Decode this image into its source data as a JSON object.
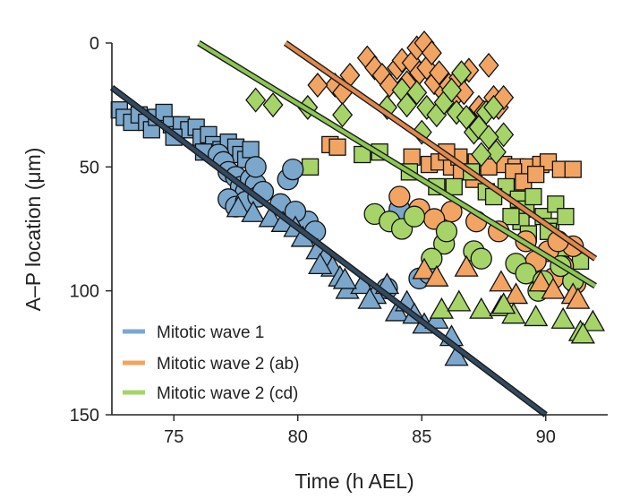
{
  "chart_data": {
    "type": "scatter",
    "xlabel": "Time (h AEL)",
    "ylabel": "A–P location (μm)",
    "xlim": [
      72.5,
      92.5
    ],
    "ylim": [
      0,
      150
    ],
    "y_inverted": true,
    "xticks": [
      75,
      80,
      85,
      90
    ],
    "yticks": [
      0,
      50,
      100,
      150
    ],
    "grid": false,
    "legend_position": "bottom-left",
    "colors": {
      "wave1": "#7ba7cc",
      "wave2ab": "#f2a463",
      "wave2cd": "#a6d468",
      "wave1_line": "#334a60",
      "wave2ab_line": "#e0884c",
      "wave2cd_line": "#8cc653",
      "outline": "#111111"
    },
    "series": [
      {
        "name": "Mitotic wave 1",
        "color_key": "wave1",
        "fit": {
          "x": [
            72.5,
            90.0
          ],
          "y": [
            18,
            150
          ]
        },
        "groups": [
          {
            "marker": "square",
            "points": [
              [
                72.8,
                27
              ],
              [
                73.0,
                30
              ],
              [
                73.3,
                32
              ],
              [
                73.6,
                29
              ],
              [
                73.9,
                32
              ],
              [
                74.1,
                35
              ],
              [
                74.3,
                30
              ],
              [
                74.6,
                28
              ],
              [
                74.9,
                33
              ],
              [
                75.1,
                37
              ],
              [
                75.3,
                33
              ],
              [
                75.6,
                35
              ],
              [
                75.9,
                34
              ],
              [
                76.1,
                38
              ],
              [
                76.4,
                37
              ],
              [
                76.6,
                41
              ],
              [
                76.9,
                43
              ],
              [
                77.2,
                40
              ],
              [
                77.5,
                42
              ],
              [
                77.7,
                45
              ],
              [
                77.9,
                47
              ],
              [
                78.1,
                43
              ],
              [
                75.0,
                38
              ],
              [
                76.2,
                44
              ]
            ]
          },
          {
            "marker": "circle",
            "points": [
              [
                76.8,
                45
              ],
              [
                77.0,
                48
              ],
              [
                77.2,
                52
              ],
              [
                77.5,
                54
              ],
              [
                77.7,
                58
              ],
              [
                77.9,
                60
              ],
              [
                78.1,
                55
              ],
              [
                78.3,
                57
              ],
              [
                77.2,
                63
              ],
              [
                77.5,
                66
              ],
              [
                77.9,
                64
              ],
              [
                78.4,
                62
              ],
              [
                78.6,
                60
              ],
              [
                78.3,
                50
              ],
              [
                79.6,
                55
              ],
              [
                79.8,
                51
              ],
              [
                80.4,
                72
              ],
              [
                80.7,
                76
              ],
              [
                79.3,
                65
              ],
              [
                79.9,
                68
              ],
              [
                84.1,
                67
              ],
              [
                84.9,
                95
              ],
              [
                85.3,
                93
              ],
              [
                83.6,
                99
              ]
            ]
          },
          {
            "marker": "triangle",
            "points": [
              [
                77.6,
                67
              ],
              [
                78.2,
                69
              ],
              [
                78.9,
                71
              ],
              [
                79.4,
                73
              ],
              [
                79.9,
                75
              ],
              [
                80.2,
                79
              ],
              [
                80.8,
                84
              ],
              [
                81.1,
                87
              ],
              [
                81.4,
                91
              ],
              [
                81.7,
                95
              ],
              [
                82.0,
                100
              ],
              [
                82.6,
                98
              ],
              [
                83.1,
                102
              ],
              [
                83.6,
                98
              ],
              [
                84.0,
                109
              ],
              [
                84.4,
                105
              ],
              [
                85.1,
                114
              ],
              [
                85.6,
                112
              ],
              [
                86.2,
                119
              ],
              [
                86.4,
                127
              ],
              [
                80.9,
                90
              ],
              [
                81.9,
                96
              ],
              [
                82.9,
                104
              ],
              [
                84.7,
                110
              ]
            ]
          }
        ]
      },
      {
        "name": "Mitotic wave 2 (ab)",
        "color_key": "wave2ab",
        "fit": {
          "x": [
            79.5,
            92.0
          ],
          "y": [
            0,
            87
          ]
        },
        "groups": [
          {
            "marker": "diamond",
            "points": [
              [
                82.8,
                6
              ],
              [
                83.1,
                10
              ],
              [
                83.4,
                13
              ],
              [
                83.7,
                17
              ],
              [
                84.0,
                10
              ],
              [
                84.2,
                7
              ],
              [
                84.4,
                16
              ],
              [
                84.6,
                8
              ],
              [
                84.8,
                2
              ],
              [
                84.9,
                12
              ],
              [
                85.1,
                0
              ],
              [
                85.2,
                10
              ],
              [
                85.4,
                4
              ],
              [
                85.5,
                16
              ],
              [
                85.7,
                12
              ],
              [
                85.9,
                20
              ],
              [
                86.1,
                17
              ],
              [
                86.3,
                22
              ],
              [
                86.5,
                14
              ],
              [
                86.7,
                20
              ],
              [
                86.9,
                11
              ],
              [
                87.1,
                30
              ],
              [
                87.3,
                26
              ],
              [
                87.5,
                28
              ],
              [
                87.7,
                9
              ],
              [
                87.9,
                22
              ],
              [
                88.1,
                26
              ],
              [
                88.3,
                22
              ],
              [
                81.5,
                17
              ],
              [
                81.8,
                20
              ],
              [
                82.1,
                13
              ],
              [
                80.8,
                17
              ]
            ]
          },
          {
            "marker": "square",
            "points": [
              [
                81.3,
                41
              ],
              [
                81.6,
                42
              ],
              [
                84.6,
                46
              ],
              [
                85.3,
                49
              ],
              [
                85.7,
                48
              ],
              [
                86.2,
                50
              ],
              [
                86.6,
                52
              ],
              [
                87.1,
                55
              ],
              [
                88.3,
                49
              ],
              [
                88.8,
                50
              ],
              [
                89.3,
                50
              ],
              [
                89.8,
                49
              ],
              [
                90.1,
                48
              ],
              [
                90.6,
                51
              ],
              [
                91.1,
                51
              ],
              [
                86.5,
                46
              ],
              [
                87.2,
                48
              ],
              [
                87.7,
                50
              ],
              [
                88.7,
                52
              ],
              [
                89.1,
                56
              ],
              [
                89.6,
                53
              ],
              [
                86.0,
                44
              ]
            ]
          },
          {
            "marker": "circle",
            "points": [
              [
                84.1,
                62
              ],
              [
                84.9,
                67
              ],
              [
                86.2,
                68
              ],
              [
                87.2,
                72
              ],
              [
                88.1,
                76
              ],
              [
                89.2,
                80
              ],
              [
                90.1,
                84
              ],
              [
                91.1,
                82
              ],
              [
                90.5,
                80
              ],
              [
                89.6,
                88
              ],
              [
                90.7,
                90
              ],
              [
                91.2,
                97
              ],
              [
                90.3,
                95
              ],
              [
                85.5,
                71
              ]
            ]
          },
          {
            "marker": "triangle",
            "points": [
              [
                85.1,
                92
              ],
              [
                85.6,
                95
              ],
              [
                86.8,
                91
              ],
              [
                88.2,
                97
              ],
              [
                88.8,
                102
              ],
              [
                89.8,
                97
              ],
              [
                90.3,
                100
              ],
              [
                91.1,
                102
              ],
              [
                91.3,
                104
              ]
            ]
          }
        ]
      },
      {
        "name": "Mitotic wave 2 (cd)",
        "color_key": "wave2cd",
        "fit": {
          "x": [
            76.0,
            92.0
          ],
          "y": [
            0,
            98
          ]
        },
        "groups": [
          {
            "marker": "diamond",
            "points": [
              [
                78.3,
                23
              ],
              [
                79.0,
                25
              ],
              [
                80.4,
                26
              ],
              [
                81.8,
                29
              ],
              [
                83.6,
                26
              ],
              [
                84.2,
                19
              ],
              [
                84.4,
                25
              ],
              [
                84.8,
                20
              ],
              [
                85.2,
                26
              ],
              [
                85.6,
                29
              ],
              [
                85.9,
                24
              ],
              [
                86.4,
                28
              ],
              [
                86.8,
                30
              ],
              [
                87.1,
                36
              ],
              [
                87.3,
                34
              ],
              [
                87.6,
                28
              ],
              [
                87.9,
                26
              ],
              [
                88.3,
                37
              ],
              [
                86.2,
                19
              ],
              [
                86.6,
                12
              ],
              [
                87.7,
                38
              ],
              [
                88.0,
                44
              ],
              [
                87.4,
                45
              ],
              [
                85.0,
                36
              ]
            ]
          },
          {
            "marker": "square",
            "points": [
              [
                80.5,
                50
              ],
              [
                82.6,
                45
              ],
              [
                83.3,
                44
              ],
              [
                84.5,
                52
              ],
              [
                85.6,
                58
              ],
              [
                86.3,
                58
              ],
              [
                87.0,
                52
              ],
              [
                87.6,
                60
              ],
              [
                88.4,
                58
              ],
              [
                88.9,
                63
              ],
              [
                89.2,
                67
              ],
              [
                89.5,
                62
              ],
              [
                89.9,
                70
              ],
              [
                90.2,
                74
              ],
              [
                90.4,
                65
              ],
              [
                90.8,
                70
              ],
              [
                91.4,
                88
              ],
              [
                90.1,
                76
              ],
              [
                89.0,
                72
              ],
              [
                88.6,
                70
              ],
              [
                90.6,
                83
              ],
              [
                89.3,
                77
              ],
              [
                87.9,
                62
              ]
            ]
          },
          {
            "marker": "circle",
            "points": [
              [
                83.1,
                69
              ],
              [
                83.7,
                72
              ],
              [
                84.2,
                75
              ],
              [
                84.7,
                70
              ],
              [
                85.9,
                81
              ],
              [
                86.0,
                76
              ],
              [
                87.1,
                84
              ],
              [
                87.4,
                87
              ],
              [
                88.8,
                89
              ],
              [
                89.2,
                93
              ],
              [
                89.7,
                100
              ],
              [
                89.9,
                96
              ],
              [
                91.1,
                96
              ],
              [
                90.6,
                90
              ],
              [
                85.4,
                87
              ]
            ]
          },
          {
            "marker": "triangle",
            "points": [
              [
                85.8,
                108
              ],
              [
                86.5,
                105
              ],
              [
                87.4,
                108
              ],
              [
                88.2,
                107
              ],
              [
                88.7,
                110
              ],
              [
                89.6,
                111
              ],
              [
                90.7,
                112
              ],
              [
                91.4,
                117
              ],
              [
                91.9,
                113
              ],
              [
                88.3,
                106
              ],
              [
                91.5,
                118
              ]
            ]
          }
        ]
      }
    ]
  }
}
